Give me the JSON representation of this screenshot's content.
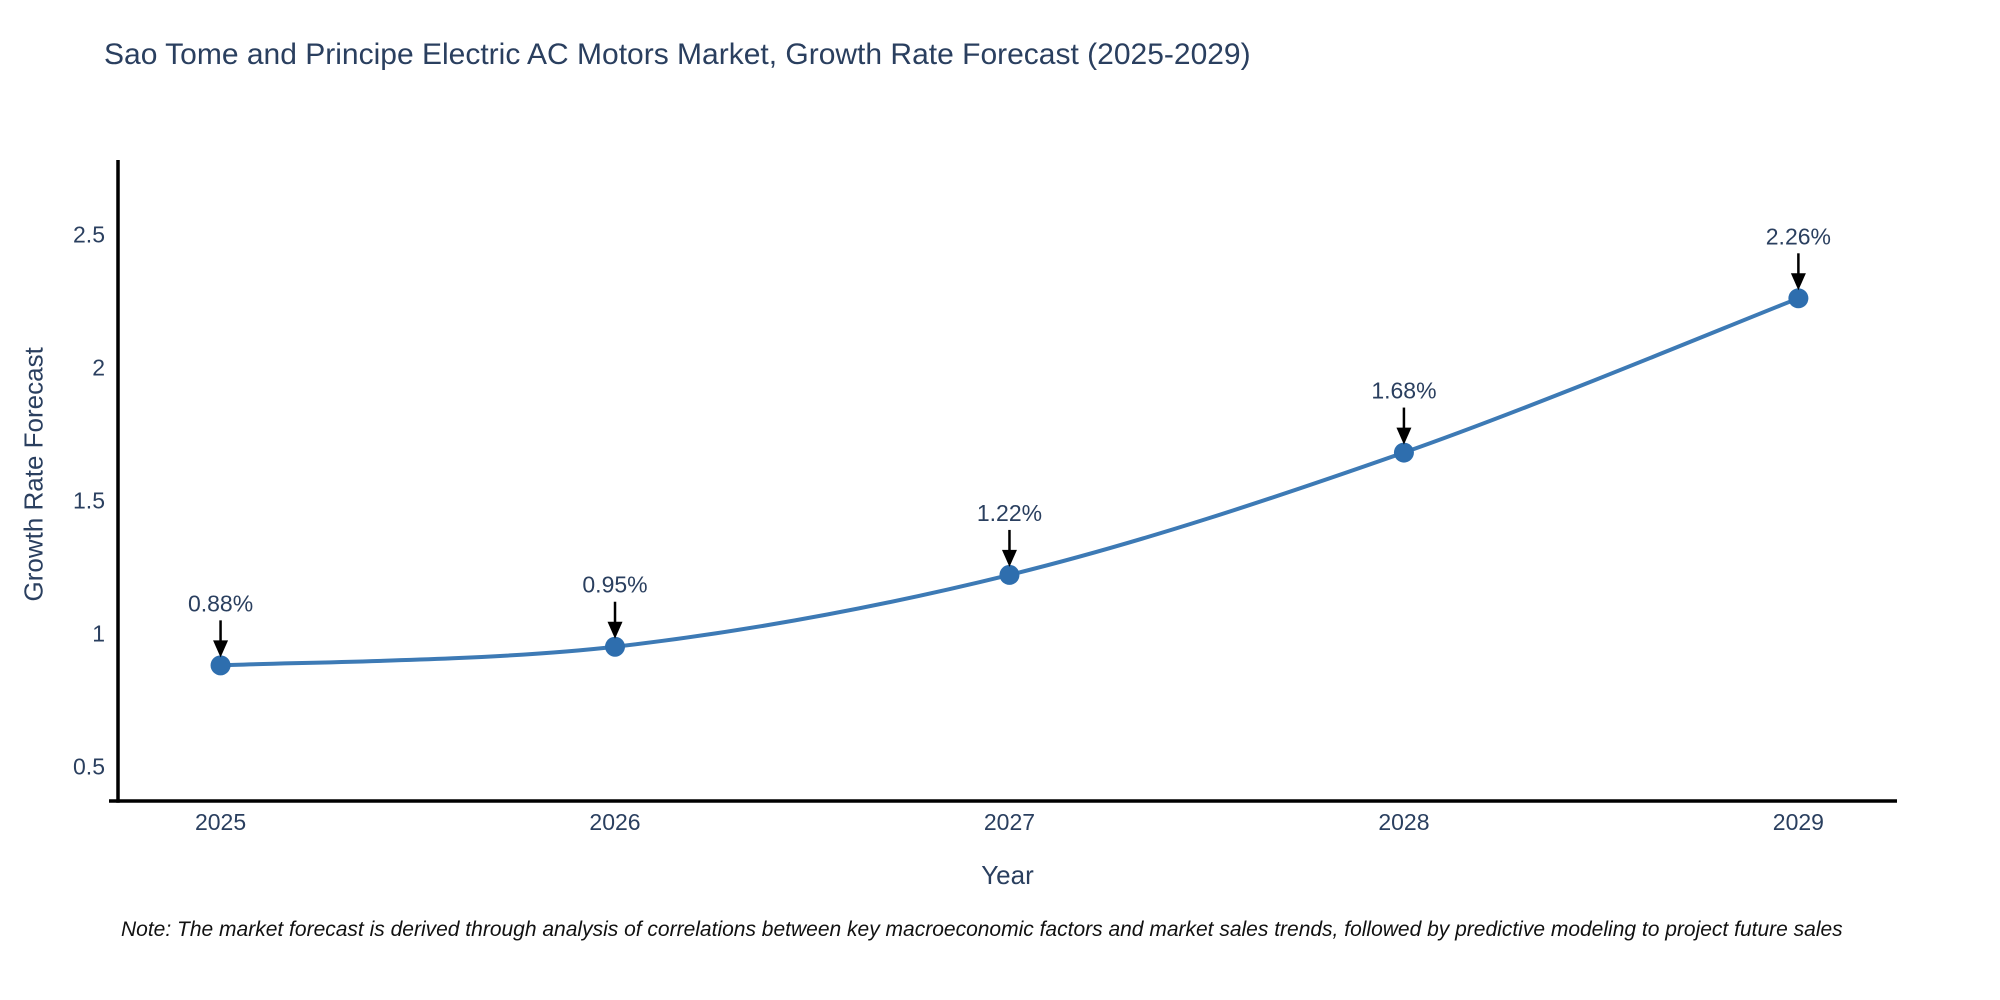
{
  "note": "Note: The market forecast is derived through analysis of correlations between key macroeconomic factors and market sales trends, followed by predictive modeling to project future sales",
  "chart_data": {
    "type": "line",
    "title": "Sao Tome and Principe Electric AC Motors Market, Growth Rate Forecast (2025-2029)",
    "xlabel": "Year",
    "ylabel": "Growth Rate Forecast",
    "x": [
      2025,
      2026,
      2027,
      2028,
      2029
    ],
    "values": [
      0.88,
      0.95,
      1.22,
      1.68,
      2.26
    ],
    "point_labels": [
      "0.88%",
      "0.95%",
      "1.22%",
      "1.68%",
      "2.26%"
    ],
    "xticks": [
      2025,
      2026,
      2027,
      2028,
      2029
    ],
    "xtick_labels": [
      "2025",
      "2026",
      "2027",
      "2028",
      "2029"
    ],
    "yticks": [
      0.5,
      1,
      1.5,
      2,
      2.5
    ],
    "ytick_labels": [
      "0.5",
      "1",
      "1.5",
      "2",
      "2.5"
    ],
    "xlim": [
      2024.74,
      2029.25
    ],
    "ylim": [
      0.37,
      2.78
    ],
    "grid": false,
    "legend": "none",
    "line_shape": "spline",
    "colors": {
      "line": "#3d7ab5",
      "marker": "#2e6eae",
      "axis": "#000000",
      "text": "#2a3f5f",
      "arrow": "#000000",
      "note_text": "#111111",
      "background": "#ffffff"
    }
  }
}
